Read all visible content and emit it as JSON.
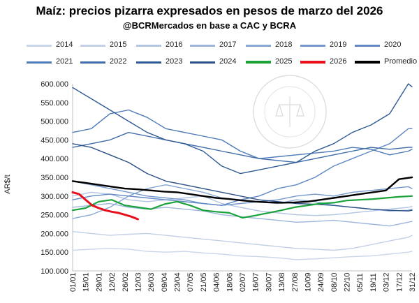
{
  "title": "Maíz: precios pizarra  expresados en pesos de marzo del 2026",
  "subtitle": "@BCRMercados en base a CAC y BCRA",
  "watermark_text": "BOLSA DE COMERCIO DE ROSARIO",
  "chart_data": {
    "type": "line",
    "ylabel": "AR$/t",
    "xlabel": "",
    "ylim": [
      100000,
      600000
    ],
    "y_ticks": [
      "600.000",
      "550.000",
      "500.000",
      "450.000",
      "400.000",
      "350.000",
      "300.000",
      "250.000",
      "200.000",
      "150.000",
      "100.000"
    ],
    "y_tick_values": [
      600000,
      550000,
      500000,
      450000,
      400000,
      350000,
      300000,
      250000,
      200000,
      150000,
      100000
    ],
    "x_ticks": [
      "01/01",
      "15/01",
      "29/01",
      "12/02",
      "26/02",
      "12/03",
      "26/03",
      "09/04",
      "23/04",
      "07/05",
      "21/05",
      "04/06",
      "18/06",
      "02/07",
      "16/07",
      "30/07",
      "13/08",
      "27/08",
      "10/09",
      "24/09",
      "08/10",
      "22/10",
      "05/11",
      "19/11",
      "03/12",
      "17/12",
      "31/12"
    ],
    "x_tick_days": [
      0,
      14,
      28,
      42,
      56,
      70,
      84,
      98,
      112,
      126,
      140,
      154,
      168,
      182,
      196,
      210,
      224,
      238,
      252,
      266,
      280,
      294,
      308,
      322,
      336,
      350,
      364
    ],
    "grid": false,
    "legend_position": "top",
    "series": [
      {
        "name": "2014",
        "color": "#c9d6ea",
        "width": 1.4,
        "x_days": [
          0,
          20,
          40,
          60,
          80,
          100,
          120,
          140,
          160,
          180,
          200,
          220,
          240,
          260,
          280,
          300,
          320,
          340,
          360,
          364
        ],
        "values": [
          155000,
          158000,
          160000,
          158000,
          152000,
          150000,
          152000,
          148000,
          145000,
          140000,
          138000,
          135000,
          130000,
          132000,
          135000,
          138000,
          140000,
          145000,
          150000,
          152000
        ]
      },
      {
        "name": "2015",
        "color": "#c2d0e6",
        "width": 1.4,
        "x_days": [
          0,
          20,
          40,
          60,
          80,
          100,
          120,
          140,
          160,
          180,
          200,
          220,
          240,
          260,
          280,
          300,
          320,
          340,
          360,
          364
        ],
        "values": [
          205000,
          200000,
          195000,
          198000,
          200000,
          195000,
          190000,
          185000,
          180000,
          175000,
          170000,
          165000,
          160000,
          158000,
          155000,
          160000,
          170000,
          180000,
          190000,
          195000
        ]
      },
      {
        "name": "2016",
        "color": "#b1c4e2",
        "width": 1.4,
        "x_days": [
          0,
          20,
          40,
          60,
          80,
          100,
          120,
          140,
          160,
          180,
          200,
          220,
          240,
          260,
          280,
          300,
          320,
          340,
          360,
          364
        ],
        "values": [
          300000,
          310000,
          305000,
          290000,
          285000,
          290000,
          295000,
          300000,
          280000,
          270000,
          260000,
          255000,
          250000,
          248000,
          250000,
          255000,
          260000,
          265000,
          270000,
          272000
        ]
      },
      {
        "name": "2017",
        "color": "#9bb5dc",
        "width": 1.4,
        "x_days": [
          0,
          20,
          40,
          60,
          80,
          100,
          120,
          140,
          160,
          180,
          200,
          220,
          240,
          260,
          280,
          300,
          320,
          340,
          360,
          364
        ],
        "values": [
          270000,
          275000,
          280000,
          270000,
          265000,
          270000,
          265000,
          260000,
          250000,
          245000,
          240000,
          235000,
          230000,
          232000,
          235000,
          230000,
          225000,
          220000,
          230000,
          232000
        ]
      },
      {
        "name": "2018",
        "color": "#86a6d4",
        "width": 1.4,
        "x_days": [
          0,
          20,
          40,
          60,
          80,
          100,
          120,
          140,
          160,
          180,
          200,
          220,
          240,
          260,
          280,
          300,
          320,
          340,
          360,
          364
        ],
        "values": [
          240000,
          250000,
          270000,
          300000,
          320000,
          330000,
          320000,
          310000,
          295000,
          290000,
          285000,
          280000,
          290000,
          285000,
          275000,
          270000,
          265000,
          260000,
          262000,
          265000
        ]
      },
      {
        "name": "2019",
        "color": "#7397cc",
        "width": 1.4,
        "x_days": [
          0,
          20,
          40,
          60,
          80,
          100,
          120,
          140,
          160,
          180,
          200,
          220,
          240,
          260,
          280,
          300,
          320,
          340,
          360,
          364
        ],
        "values": [
          340000,
          330000,
          320000,
          310000,
          300000,
          295000,
          290000,
          280000,
          275000,
          280000,
          285000,
          290000,
          300000,
          305000,
          300000,
          310000,
          315000,
          320000,
          325000,
          320000
        ]
      },
      {
        "name": "2020",
        "color": "#5f88c4",
        "width": 1.4,
        "x_days": [
          0,
          20,
          40,
          60,
          80,
          100,
          120,
          140,
          160,
          180,
          200,
          220,
          240,
          260,
          280,
          300,
          320,
          340,
          360,
          364
        ],
        "values": [
          290000,
          300000,
          305000,
          300000,
          295000,
          290000,
          285000,
          280000,
          275000,
          290000,
          300000,
          320000,
          330000,
          350000,
          380000,
          400000,
          420000,
          440000,
          480000,
          480000
        ]
      },
      {
        "name": "2021",
        "color": "#4d7ab8",
        "width": 1.4,
        "x_days": [
          0,
          20,
          40,
          60,
          80,
          100,
          120,
          140,
          160,
          180,
          200,
          220,
          240,
          260,
          280,
          300,
          320,
          340,
          360,
          364
        ],
        "values": [
          470000,
          480000,
          520000,
          530000,
          510000,
          480000,
          470000,
          460000,
          450000,
          420000,
          400000,
          405000,
          410000,
          415000,
          420000,
          430000,
          425000,
          410000,
          420000,
          425000
        ]
      },
      {
        "name": "2022",
        "color": "#3f6ba8",
        "width": 1.4,
        "x_days": [
          0,
          20,
          40,
          60,
          80,
          100,
          120,
          140,
          160,
          180,
          200,
          220,
          240,
          260,
          280,
          300,
          320,
          340,
          360,
          364
        ],
        "values": [
          430000,
          440000,
          450000,
          470000,
          460000,
          450000,
          440000,
          430000,
          420000,
          410000,
          400000,
          395000,
          390000,
          400000,
          410000,
          420000,
          430000,
          425000,
          430000,
          430000
        ]
      },
      {
        "name": "2023",
        "color": "#2e5a94",
        "width": 1.4,
        "x_days": [
          0,
          20,
          40,
          60,
          80,
          100,
          120,
          140,
          160,
          180,
          200,
          220,
          240,
          260,
          280,
          300,
          320,
          340,
          360,
          364
        ],
        "values": [
          590000,
          560000,
          530000,
          500000,
          470000,
          450000,
          440000,
          420000,
          380000,
          360000,
          370000,
          380000,
          390000,
          420000,
          440000,
          470000,
          490000,
          520000,
          600000,
          592000
        ]
      },
      {
        "name": "2024",
        "color": "#2a4f86",
        "width": 1.4,
        "x_days": [
          0,
          20,
          40,
          60,
          80,
          100,
          120,
          140,
          160,
          180,
          200,
          220,
          240,
          260,
          280,
          300,
          320,
          340,
          360,
          364
        ],
        "values": [
          440000,
          430000,
          410000,
          390000,
          360000,
          340000,
          330000,
          320000,
          310000,
          300000,
          290000,
          285000,
          280000,
          278000,
          275000,
          270000,
          265000,
          262000,
          260000,
          262000
        ]
      },
      {
        "name": "2025",
        "color": "#1aa33a",
        "width": 2.2,
        "x_days": [
          0,
          14,
          28,
          42,
          56,
          70,
          84,
          98,
          112,
          126,
          140,
          154,
          168,
          182,
          196,
          210,
          224,
          238,
          252,
          266,
          280,
          294,
          308,
          322,
          336,
          350,
          364
        ],
        "values": [
          262000,
          268000,
          285000,
          290000,
          275000,
          270000,
          265000,
          278000,
          285000,
          275000,
          262000,
          258000,
          255000,
          242000,
          248000,
          255000,
          262000,
          270000,
          275000,
          280000,
          282000,
          288000,
          290000,
          292000,
          295000,
          298000,
          300000
        ]
      },
      {
        "name": "2026",
        "color": "#e8101c",
        "width": 3,
        "x_days": [
          0,
          7,
          14,
          21,
          28,
          35,
          42,
          49,
          56,
          63,
          70
        ],
        "values": [
          310000,
          305000,
          290000,
          275000,
          268000,
          262000,
          258000,
          255000,
          250000,
          245000,
          238000
        ]
      },
      {
        "name": "Promedio",
        "color": "#000000",
        "width": 2.4,
        "x_days": [
          0,
          14,
          28,
          42,
          56,
          70,
          84,
          98,
          112,
          126,
          140,
          154,
          168,
          182,
          196,
          210,
          224,
          238,
          252,
          266,
          280,
          294,
          308,
          322,
          336,
          350,
          364
        ],
        "values": [
          340000,
          335000,
          330000,
          325000,
          320000,
          318000,
          315000,
          312000,
          310000,
          305000,
          300000,
          295000,
          292000,
          288000,
          285000,
          283000,
          282000,
          283000,
          285000,
          290000,
          295000,
          300000,
          305000,
          310000,
          315000,
          345000,
          350000
        ]
      }
    ]
  }
}
